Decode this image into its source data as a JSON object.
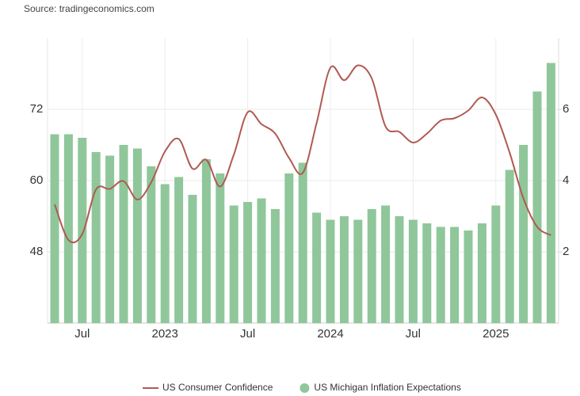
{
  "chart_data": {
    "type": "bar-line",
    "source": "Source: tradingeconomics.com",
    "categories": [
      null,
      null,
      "Jul",
      null,
      null,
      null,
      null,
      null,
      "2023",
      null,
      null,
      null,
      null,
      null,
      "Jul",
      null,
      null,
      null,
      null,
      null,
      "2024",
      null,
      null,
      null,
      null,
      null,
      "Jul",
      null,
      null,
      null,
      null,
      null,
      "2025",
      null,
      null,
      null,
      null
    ],
    "series": [
      {
        "name": "US Consumer Confidence",
        "color": "#b05a52",
        "kind": "line",
        "axis": "y",
        "values": [
          56.0,
          50.0,
          51.0,
          58.5,
          58.6,
          59.9,
          56.8,
          59.7,
          64.9,
          67.0,
          62.0,
          63.5,
          59.0,
          64.4,
          71.5,
          69.5,
          67.9,
          63.8,
          61.3,
          69.7,
          79.0,
          76.9,
          79.4,
          77.2,
          69.1,
          68.2,
          66.4,
          67.9,
          70.1,
          70.5,
          71.8,
          74.0,
          71.1,
          64.7,
          57.0,
          52.2,
          50.8
        ]
      },
      {
        "name": "US Michigan Inflation Expectations",
        "color": "#8fc79a",
        "kind": "bar",
        "axis": "y2",
        "values": [
          5.3,
          5.3,
          5.2,
          4.8,
          4.7,
          5.0,
          4.9,
          4.4,
          3.9,
          4.1,
          3.6,
          4.6,
          4.2,
          3.3,
          3.4,
          3.5,
          3.2,
          4.2,
          4.5,
          3.1,
          2.9,
          3.0,
          2.9,
          3.2,
          3.3,
          3.0,
          2.9,
          2.8,
          2.7,
          2.7,
          2.6,
          2.8,
          3.3,
          4.3,
          5.0,
          6.5,
          7.3
        ]
      }
    ],
    "ylim": [
      36,
      84
    ],
    "yticks": [
      48,
      60,
      72
    ],
    "y2lim": [
      0,
      8
    ],
    "y2ticks": [
      2,
      4,
      6
    ],
    "grid": true,
    "legend": "bottom"
  }
}
